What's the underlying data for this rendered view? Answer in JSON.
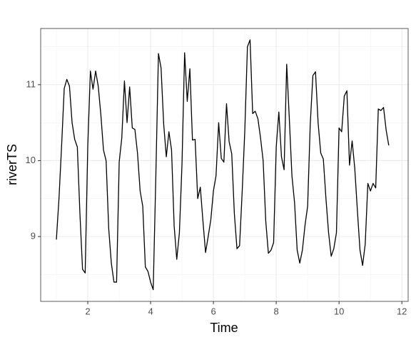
{
  "chart_data": {
    "type": "line",
    "x_label": "Time",
    "y_label": "riverTS",
    "x": [
      1,
      1.083,
      1.167,
      1.25,
      1.333,
      1.417,
      1.5,
      1.583,
      1.667,
      1.75,
      1.833,
      1.917,
      2,
      2.083,
      2.167,
      2.25,
      2.333,
      2.417,
      2.5,
      2.583,
      2.667,
      2.75,
      2.833,
      2.917,
      3,
      3.083,
      3.167,
      3.25,
      3.333,
      3.417,
      3.5,
      3.583,
      3.667,
      3.75,
      3.833,
      3.917,
      4,
      4.083,
      4.167,
      4.25,
      4.333,
      4.417,
      4.5,
      4.583,
      4.667,
      4.75,
      4.833,
      4.917,
      5,
      5.083,
      5.167,
      5.25,
      5.333,
      5.417,
      5.5,
      5.583,
      5.667,
      5.75,
      5.833,
      5.917,
      6,
      6.083,
      6.167,
      6.25,
      6.333,
      6.417,
      6.5,
      6.583,
      6.667,
      6.75,
      6.833,
      6.917,
      7,
      7.083,
      7.167,
      7.25,
      7.333,
      7.417,
      7.5,
      7.583,
      7.667,
      7.75,
      7.833,
      7.917,
      8,
      8.083,
      8.167,
      8.25,
      8.333,
      8.417,
      8.5,
      8.583,
      8.667,
      8.75,
      8.833,
      8.917,
      9,
      9.083,
      9.167,
      9.25,
      9.333,
      9.417,
      9.5,
      9.583,
      9.667,
      9.75,
      9.833,
      9.917,
      10,
      10.083,
      10.167,
      10.25,
      10.333,
      10.417,
      10.5,
      10.583,
      10.667,
      10.75,
      10.833,
      10.917,
      11,
      11.083,
      11.167,
      11.25,
      11.333,
      11.417,
      11.5,
      11.583
    ],
    "values": [
      8.96,
      9.5,
      10.2,
      10.95,
      11.07,
      10.98,
      10.5,
      10.28,
      10.18,
      9.3,
      8.57,
      8.52,
      10.2,
      11.18,
      10.94,
      11.18,
      10.98,
      10.6,
      10.14,
      10.0,
      9.1,
      8.65,
      8.4,
      8.4,
      9.98,
      10.3,
      11.05,
      10.5,
      10.97,
      10.43,
      10.41,
      10.1,
      9.6,
      9.4,
      8.6,
      8.54,
      8.4,
      8.3,
      9.8,
      11.41,
      11.22,
      10.48,
      10.05,
      10.38,
      10.14,
      9.14,
      8.7,
      9.05,
      9.96,
      11.42,
      10.78,
      11.21,
      10.27,
      10.28,
      9.5,
      9.65,
      9.2,
      8.79,
      9.0,
      9.22,
      9.6,
      9.8,
      10.5,
      10.03,
      9.98,
      10.75,
      10.25,
      10.09,
      9.3,
      8.84,
      8.88,
      9.6,
      10.4,
      11.5,
      11.59,
      10.62,
      10.65,
      10.55,
      10.3,
      10.0,
      9.2,
      8.78,
      8.82,
      8.92,
      10.18,
      10.64,
      10.05,
      9.88,
      11.27,
      10.55,
      9.8,
      9.45,
      8.82,
      8.65,
      8.82,
      9.15,
      9.4,
      10.48,
      11.12,
      11.17,
      10.5,
      10.1,
      10.02,
      9.5,
      9.05,
      8.74,
      8.84,
      9.05,
      10.43,
      10.38,
      10.85,
      10.92,
      9.94,
      10.26,
      9.9,
      9.35,
      8.82,
      8.62,
      8.9,
      9.7,
      9.6,
      9.7,
      9.64,
      10.68,
      10.66,
      10.7,
      10.4,
      10.2
    ],
    "color": "#000000",
    "xlim": [
      0.5,
      12.2
    ],
    "ylim": [
      8.146,
      11.74
    ],
    "xticks": [
      2,
      4,
      6,
      8,
      10,
      12
    ],
    "yticks": [
      9,
      10,
      11
    ],
    "xminor": [
      1,
      3,
      5,
      7,
      9,
      11
    ],
    "yminor": [
      8.5,
      9.5,
      10.5,
      11.5
    ],
    "grid": true
  }
}
